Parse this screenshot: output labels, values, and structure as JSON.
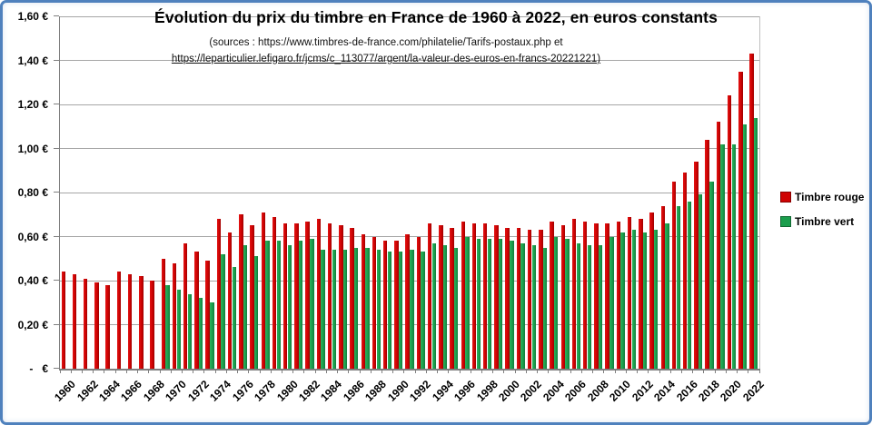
{
  "title": "Évolution du prix du timbre en France de 1960 à 2022, en euros constants",
  "sources_line1": "(sources : https://www.timbres-de-france.com/philatelie/Tarifs-postaux.php et",
  "sources_line2": "https://leparticulier.lefigaro.fr/jcms/c_113077/argent/la-valeur-des-euros-en-francs-20221221)",
  "colors": {
    "red_bar": "#cf0303",
    "green_bar": "#1b9e4d",
    "gridline": "#a6a6a6",
    "axis": "#7f7f7f",
    "frame_border": "#4f81bd"
  },
  "chart_data": {
    "type": "bar",
    "title": "Évolution du prix du timbre en France de 1960 à 2022, en euros constants",
    "xlabel": "",
    "ylabel": "",
    "ylim": [
      0,
      1.6
    ],
    "ytick_step": 0.2,
    "grid": true,
    "legend_position": "right",
    "currency_format": "french euros, comma decimal",
    "x": [
      1960,
      1961,
      1962,
      1963,
      1964,
      1965,
      1966,
      1967,
      1968,
      1969,
      1970,
      1971,
      1972,
      1973,
      1974,
      1975,
      1976,
      1977,
      1978,
      1979,
      1980,
      1981,
      1982,
      1983,
      1984,
      1985,
      1986,
      1987,
      1988,
      1989,
      1990,
      1991,
      1992,
      1993,
      1994,
      1995,
      1996,
      1997,
      1998,
      1999,
      2000,
      2001,
      2002,
      2003,
      2004,
      2005,
      2006,
      2007,
      2008,
      2009,
      2010,
      2011,
      2012,
      2013,
      2014,
      2015,
      2016,
      2017,
      2018,
      2019,
      2020,
      2021,
      2022
    ],
    "series": [
      {
        "name": "Timbre rouge",
        "color": "#cf0303",
        "values": [
          0.44,
          0.43,
          0.41,
          0.39,
          0.38,
          0.44,
          0.43,
          0.42,
          0.4,
          0.5,
          0.48,
          0.57,
          0.53,
          0.49,
          0.68,
          0.62,
          0.7,
          0.65,
          0.71,
          0.69,
          0.66,
          0.66,
          0.67,
          0.68,
          0.66,
          0.65,
          0.64,
          0.61,
          0.6,
          0.58,
          0.58,
          0.61,
          0.6,
          0.66,
          0.65,
          0.64,
          0.67,
          0.66,
          0.66,
          0.65,
          0.64,
          0.64,
          0.63,
          0.63,
          0.67,
          0.65,
          0.68,
          0.67,
          0.66,
          0.66,
          0.67,
          0.69,
          0.68,
          0.71,
          0.74,
          0.85,
          0.89,
          0.94,
          1.04,
          1.12,
          1.24,
          1.35,
          1.43
        ]
      },
      {
        "name": "Timbre vert",
        "color": "#1b9e4d",
        "values": [
          null,
          null,
          null,
          null,
          null,
          null,
          null,
          null,
          null,
          0.38,
          0.36,
          0.34,
          0.32,
          0.3,
          0.52,
          0.46,
          0.56,
          0.51,
          0.58,
          0.58,
          0.56,
          0.58,
          0.59,
          0.54,
          0.54,
          0.54,
          0.55,
          0.55,
          0.54,
          0.53,
          0.53,
          0.54,
          0.53,
          0.57,
          0.56,
          0.55,
          0.6,
          0.59,
          0.59,
          0.59,
          0.58,
          0.57,
          0.56,
          0.55,
          0.6,
          0.59,
          0.57,
          0.56,
          0.56,
          0.6,
          0.62,
          0.63,
          0.62,
          0.63,
          0.66,
          0.74,
          0.76,
          0.79,
          0.85,
          1.02,
          1.02,
          1.11,
          1.14
        ]
      }
    ],
    "ytick_labels": [
      "-   €",
      "0,20 €",
      "0,40 €",
      "0,60 €",
      "0,80 €",
      "1,00 €",
      "1,20 €",
      "1,40 €",
      "1,60 €"
    ],
    "xtick_labels": [
      "1960",
      "1962",
      "1964",
      "1966",
      "1968",
      "1970",
      "1972",
      "1974",
      "1976",
      "1978",
      "1980",
      "1982",
      "1984",
      "1986",
      "1988",
      "1990",
      "1992",
      "1994",
      "1996",
      "1998",
      "2000",
      "2002",
      "2004",
      "2006",
      "2008",
      "2010",
      "2012",
      "2014",
      "2016",
      "2018",
      "2020",
      "2022"
    ]
  }
}
